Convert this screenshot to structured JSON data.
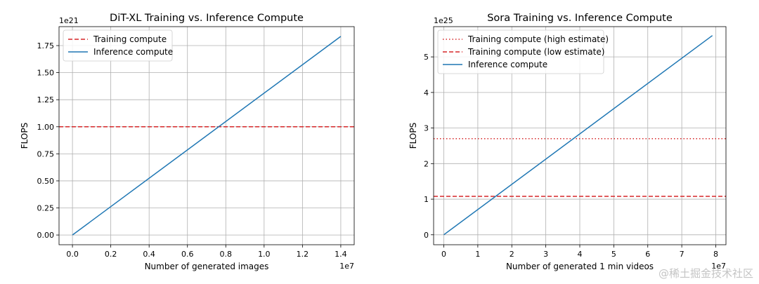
{
  "chart_data": [
    {
      "type": "line",
      "title": "DiT-XL Training vs. Inference Compute",
      "xlabel": "Number of generated images",
      "ylabel": "FLOPS",
      "x_offset_label": "1e7",
      "y_offset_label": "1e21",
      "xlim": [
        -0.07,
        1.47
      ],
      "ylim": [
        -0.09,
        1.925
      ],
      "xticks": [
        0.0,
        0.2,
        0.4,
        0.6,
        0.8,
        1.0,
        1.2,
        1.4
      ],
      "xtick_labels": [
        "0.0",
        "0.2",
        "0.4",
        "0.6",
        "0.8",
        "1.0",
        "1.2",
        "1.4"
      ],
      "yticks": [
        0.0,
        0.25,
        0.5,
        0.75,
        1.0,
        1.25,
        1.5,
        1.75
      ],
      "ytick_labels": [
        "0.00",
        "0.25",
        "0.50",
        "0.75",
        "1.00",
        "1.25",
        "1.50",
        "1.75"
      ],
      "grid": true,
      "legend_position": "top-left",
      "hlines": [
        {
          "name": "Training compute",
          "value": 1.0,
          "color": "#d62728",
          "style": "dashed"
        }
      ],
      "series": [
        {
          "name": "Inference compute",
          "color": "#1f77b4",
          "x": [
            0.0,
            1.4
          ],
          "y": [
            0.0,
            1.835
          ]
        }
      ]
    },
    {
      "type": "line",
      "title": "Sora Training vs. Inference Compute",
      "xlabel": "Number of generated 1 min videos",
      "ylabel": "FLOPS",
      "x_offset_label": "1e7",
      "y_offset_label": "1e25",
      "xlim": [
        -0.3,
        8.3
      ],
      "ylim": [
        -0.28,
        5.85
      ],
      "xticks": [
        0,
        1,
        2,
        3,
        4,
        5,
        6,
        7,
        8
      ],
      "xtick_labels": [
        "0",
        "1",
        "2",
        "3",
        "4",
        "5",
        "6",
        "7",
        "8"
      ],
      "yticks": [
        0,
        1,
        2,
        3,
        4,
        5
      ],
      "ytick_labels": [
        "0",
        "1",
        "2",
        "3",
        "4",
        "5"
      ],
      "grid": true,
      "legend_position": "top-left",
      "hlines": [
        {
          "name": "Training compute (high estimate)",
          "value": 2.7,
          "color": "#d62728",
          "style": "dotted"
        },
        {
          "name": "Training compute (low estimate)",
          "value": 1.08,
          "color": "#d62728",
          "style": "dashed"
        }
      ],
      "series": [
        {
          "name": "Inference compute",
          "color": "#1f77b4",
          "x": [
            0.0,
            7.9
          ],
          "y": [
            0.0,
            5.6
          ]
        }
      ]
    }
  ],
  "watermark": "@稀土掘金技术社区"
}
